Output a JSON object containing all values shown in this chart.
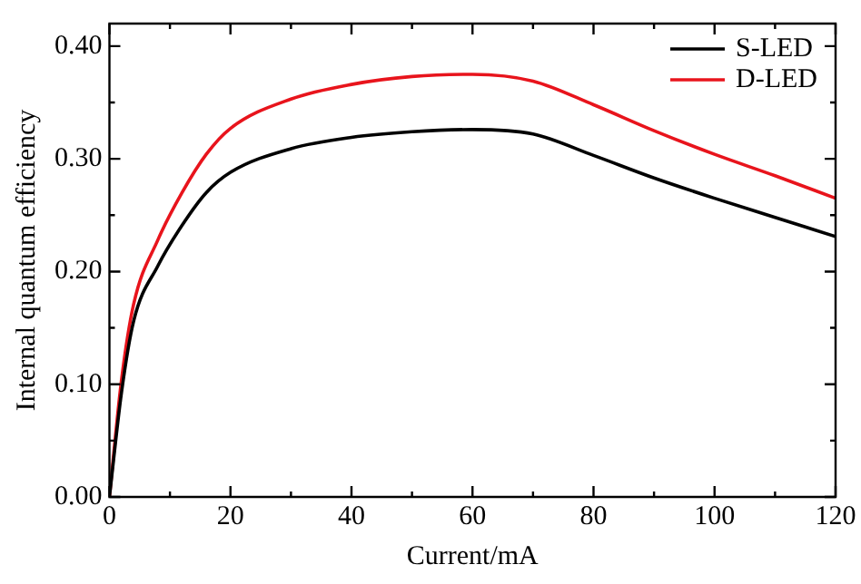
{
  "chart_data": {
    "type": "line",
    "xlabel": "Current/mA",
    "ylabel": "Internal quantum efficiency",
    "x": [
      0,
      2,
      4,
      8,
      12,
      16,
      20,
      30,
      40,
      50,
      60,
      70,
      80,
      90,
      100,
      110,
      120
    ],
    "series": [
      {
        "name": "S-LED",
        "color": "#000000",
        "values": [
          0,
          0.093,
          0.156,
          0.205,
          0.241,
          0.27,
          0.288,
          0.309,
          0.319,
          0.324,
          0.326,
          0.322,
          0.303,
          0.283,
          0.265,
          0.248,
          0.231
        ]
      },
      {
        "name": "D-LED",
        "color": "#e8141c",
        "values": [
          0,
          0.104,
          0.171,
          0.228,
          0.27,
          0.304,
          0.327,
          0.353,
          0.366,
          0.373,
          0.375,
          0.369,
          0.348,
          0.325,
          0.304,
          0.285,
          0.265
        ]
      }
    ],
    "xlim": [
      0,
      120
    ],
    "xticks": [
      0,
      20,
      40,
      60,
      80,
      100,
      120
    ],
    "ylim": [
      0,
      0.42
    ],
    "yticks": [
      {
        "value": 0,
        "label": "0.00"
      },
      {
        "value": 0.1,
        "label": "0.10"
      },
      {
        "value": 0.2,
        "label": "0.20"
      },
      {
        "value": 0.3,
        "label": "0.30"
      },
      {
        "value": 0.4,
        "label": "0.40"
      }
    ],
    "grid": false,
    "legend": "top right",
    "marker": "none",
    "line_style": "solid"
  }
}
